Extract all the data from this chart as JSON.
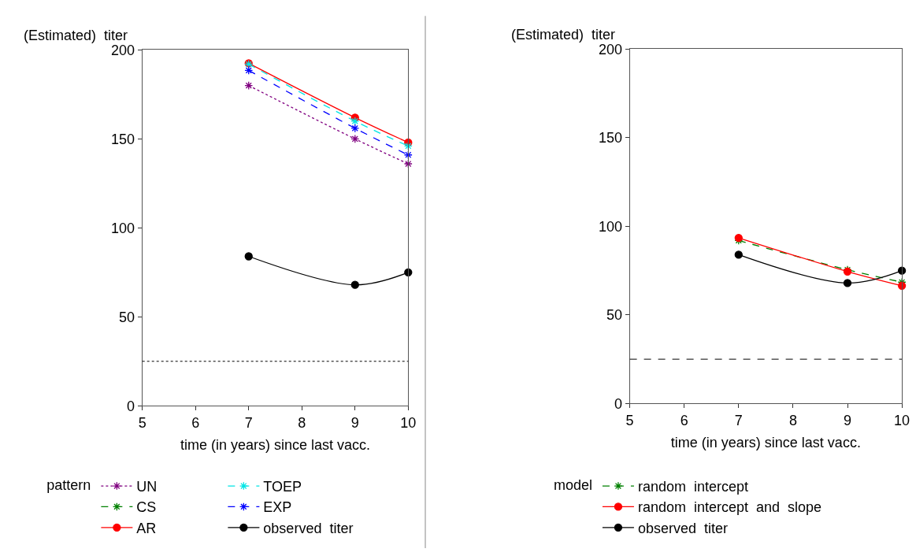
{
  "chart_data": [
    {
      "type": "line",
      "ylabel": "(Estimated)  titer",
      "xlabel": "time (in years) since last vacc.",
      "legend_title": "pattern",
      "legend": "bottom",
      "x": [
        7,
        9,
        10
      ],
      "xlim": [
        5,
        10
      ],
      "xticks": [
        5,
        6,
        7,
        8,
        9,
        10
      ],
      "ylim": [
        0,
        200
      ],
      "yticks": [
        0,
        50,
        100,
        150,
        200
      ],
      "series": [
        {
          "name": "UN",
          "color": "#800080",
          "values": [
            180,
            150,
            136
          ],
          "marker": "cross",
          "line_style": "dotted"
        },
        {
          "name": "CS",
          "color": "#008000",
          "values": [
            null,
            null,
            null
          ],
          "marker": "cross",
          "line_style": "dashed"
        },
        {
          "name": "AR",
          "color": "#ff0000",
          "values": [
            192.5,
            162,
            148
          ],
          "marker": "circle",
          "line_style": "solid"
        },
        {
          "name": "TOEP",
          "color": "#00e5e5",
          "values": [
            192,
            160,
            146
          ],
          "marker": "cross",
          "line_style": "dashed"
        },
        {
          "name": "EXP",
          "color": "#0000ff",
          "values": [
            188.5,
            156,
            141
          ],
          "marker": "cross",
          "line_style": "dashed"
        },
        {
          "name": "observed  titer",
          "color": "#000000",
          "values": [
            84,
            68,
            75
          ],
          "marker": "circle",
          "line_style": "solid"
        }
      ],
      "ref_lines": [
        {
          "axis": "y",
          "value": 25,
          "color": "#000000",
          "line_style": "dotted"
        }
      ]
    },
    {
      "type": "line",
      "ylabel": "(Estimated)  titer",
      "xlabel": "time (in years) since last vacc.",
      "legend_title": "model",
      "legend": "bottom",
      "x": [
        7,
        9,
        10
      ],
      "xlim": [
        5,
        10
      ],
      "xticks": [
        5,
        6,
        7,
        8,
        9,
        10
      ],
      "ylim": [
        0,
        200
      ],
      "yticks": [
        0,
        50,
        100,
        150,
        200
      ],
      "series": [
        {
          "name": "random  intercept",
          "color": "#008000",
          "values": [
            92,
            75.5,
            68.5
          ],
          "marker": "cross",
          "line_style": "dashed"
        },
        {
          "name": "random  intercept  and  slope",
          "color": "#ff0000",
          "values": [
            93.5,
            74.5,
            66.5
          ],
          "marker": "circle",
          "line_style": "solid"
        },
        {
          "name": "observed  titer",
          "color": "#000000",
          "values": [
            84,
            68,
            75
          ],
          "marker": "circle",
          "line_style": "solid"
        }
      ],
      "ref_lines": [
        {
          "axis": "y",
          "value": 25,
          "color": "#000000",
          "line_style": "dashed"
        }
      ]
    }
  ]
}
